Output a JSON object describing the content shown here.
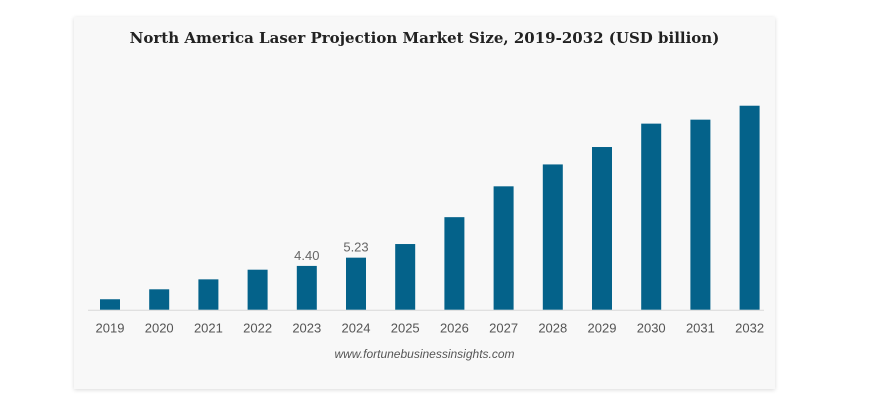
{
  "chart_data": {
    "type": "bar",
    "title": "North America Laser Projection Market Size, 2019-2032 (USD billion)",
    "categories": [
      "2019",
      "2020",
      "2021",
      "2022",
      "2023",
      "2024",
      "2025",
      "2026",
      "2027",
      "2028",
      "2029",
      "2030",
      "2031",
      "2032"
    ],
    "values": [
      1.05,
      2.05,
      3.05,
      4.02,
      4.4,
      5.23,
      6.6,
      9.3,
      12.4,
      14.6,
      16.35,
      18.7,
      19.1,
      20.5
    ],
    "data_labels": {
      "2023": "4.40",
      "2024": "5.23"
    },
    "xlabel": "",
    "ylabel": "",
    "ylim": [
      0,
      21
    ],
    "grid": false,
    "bar_color": "#04628a",
    "source": "www.fortunebusinessinsights.com"
  }
}
